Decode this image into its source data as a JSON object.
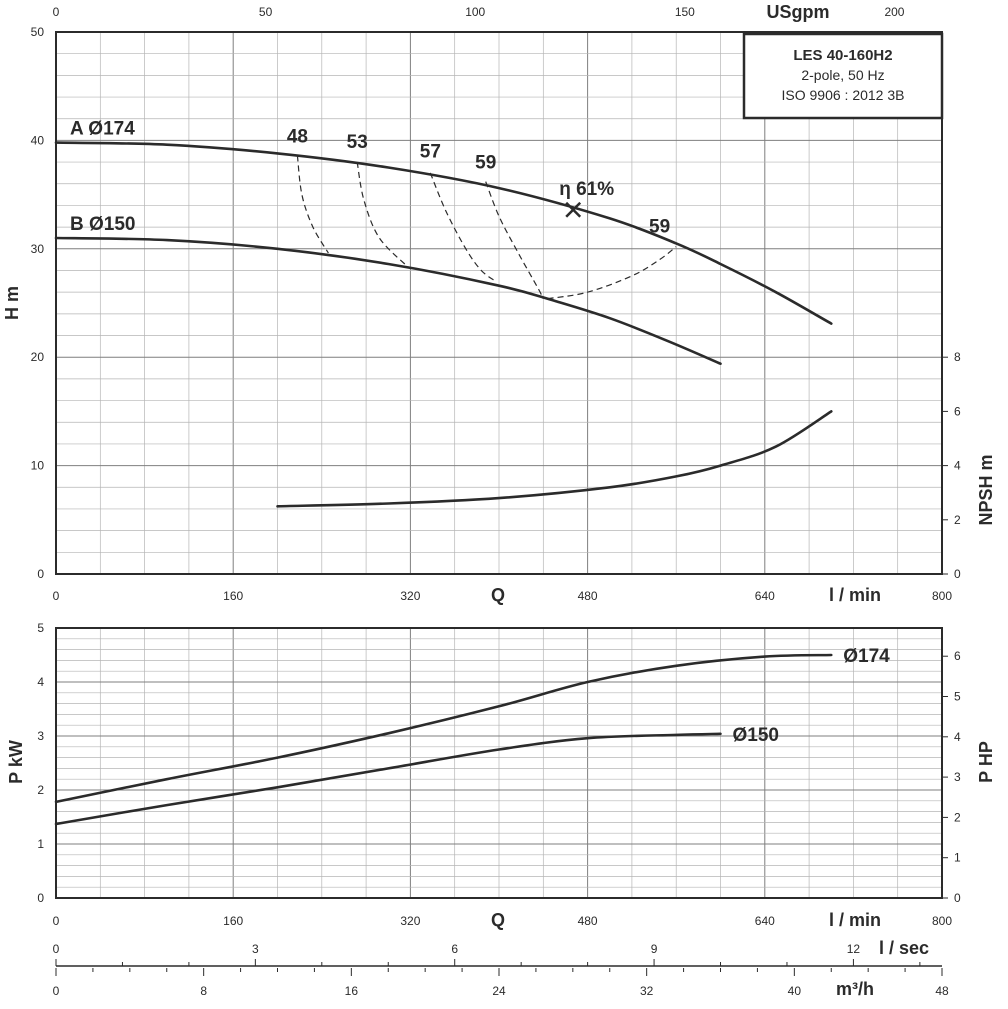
{
  "chart_data": [
    {
      "type": "line",
      "title": "LES 40-160H2",
      "info": [
        "2-pole, 50 Hz",
        "ISO 9906 : 2012 3B"
      ],
      "xlabel": "l / min",
      "xlabel_center": "Q",
      "x_range": [
        0,
        800
      ],
      "x_ticks": [
        "0",
        "160",
        "320",
        "480",
        "640",
        "800"
      ],
      "top_axis_label": "USgpm",
      "top_axis_ticks": [
        "0",
        "50",
        "100",
        "150",
        "200"
      ],
      "ylabel": "H m",
      "y_range": [
        0,
        50
      ],
      "y_ticks": [
        "0",
        "10",
        "20",
        "30",
        "40",
        "50"
      ],
      "y2label": "NPSH m",
      "y2_range": [
        0,
        20
      ],
      "y2_ticks": [
        "0",
        "2",
        "4",
        "6",
        "8"
      ],
      "grid": true,
      "series": [
        {
          "name": "A Ø174",
          "x": [
            0,
            100,
            200,
            300,
            400,
            500,
            560,
            600,
            650,
            700
          ],
          "y": [
            39.8,
            39.6,
            38.8,
            37.5,
            35.6,
            32.8,
            30.5,
            28.6,
            26.0,
            23.1
          ]
        },
        {
          "name": "B Ø150",
          "x": [
            0,
            100,
            200,
            300,
            400,
            450,
            500,
            550,
            600
          ],
          "y": [
            31.0,
            30.8,
            30.0,
            28.6,
            26.6,
            25.2,
            23.6,
            21.6,
            19.4
          ]
        },
        {
          "name": "NPSH",
          "axis": "right",
          "x": [
            200,
            300,
            400,
            500,
            560,
            600,
            650,
            700
          ],
          "y": [
            2.5,
            2.6,
            2.8,
            3.2,
            3.6,
            4.0,
            4.7,
            6.0
          ]
        }
      ],
      "efficiency_labels": [
        "48",
        "53",
        "57",
        "59",
        "59"
      ],
      "efficiency_curves": [
        {
          "label": "48",
          "x": [
            218,
            222,
            232,
            246
          ],
          "y": [
            38.6,
            35.0,
            32.0,
            29.6
          ]
        },
        {
          "label": "53",
          "x": [
            272,
            278,
            292,
            318
          ],
          "y": [
            38.0,
            34.5,
            31.0,
            28.3
          ]
        },
        {
          "label": "57",
          "x": [
            338,
            352,
            370,
            384,
            397
          ],
          "y": [
            37.0,
            33.5,
            30.0,
            28.0,
            27.0
          ]
        },
        {
          "label": "59",
          "x": [
            388,
            400,
            418,
            435,
            440
          ],
          "y": [
            36.2,
            33.0,
            29.5,
            26.4,
            25.4
          ]
        },
        {
          "label": "59",
          "x": [
            444,
            480,
            520,
            545,
            560
          ],
          "y": [
            25.4,
            26.0,
            27.5,
            29.0,
            30.2
          ]
        }
      ],
      "bep": {
        "label": "η 61%",
        "x": 467,
        "y": 33.6
      }
    },
    {
      "type": "line",
      "xlabel": "l / min",
      "xlabel_center": "Q",
      "x_range": [
        0,
        800
      ],
      "x_ticks": [
        "0",
        "160",
        "320",
        "480",
        "640",
        "800"
      ],
      "ylabel": "P kW",
      "y_range": [
        0,
        5
      ],
      "y_ticks": [
        "0",
        "1",
        "2",
        "3",
        "4",
        "5"
      ],
      "y2label": "P HP",
      "y2_range": [
        0,
        6.7
      ],
      "y2_ticks": [
        "0",
        "1",
        "2",
        "3",
        "4",
        "5",
        "6"
      ],
      "grid": true,
      "series": [
        {
          "name": "Ø174",
          "x": [
            0,
            100,
            200,
            300,
            400,
            480,
            560,
            640,
            700
          ],
          "y": [
            1.78,
            2.2,
            2.6,
            3.05,
            3.55,
            4.0,
            4.3,
            4.47,
            4.5
          ]
        },
        {
          "name": "Ø150",
          "x": [
            0,
            100,
            200,
            300,
            400,
            480,
            560,
            600
          ],
          "y": [
            1.37,
            1.72,
            2.05,
            2.4,
            2.75,
            2.96,
            3.02,
            3.04
          ]
        }
      ]
    }
  ],
  "extra_axes": [
    {
      "label": "l / sec",
      "range": [
        0,
        13.333
      ],
      "ticks": [
        "0",
        "3",
        "6",
        "9",
        "12"
      ]
    },
    {
      "label": "m³/h",
      "range": [
        0,
        48
      ],
      "ticks": [
        "0",
        "8",
        "16",
        "24",
        "32",
        "40",
        "48"
      ]
    }
  ]
}
